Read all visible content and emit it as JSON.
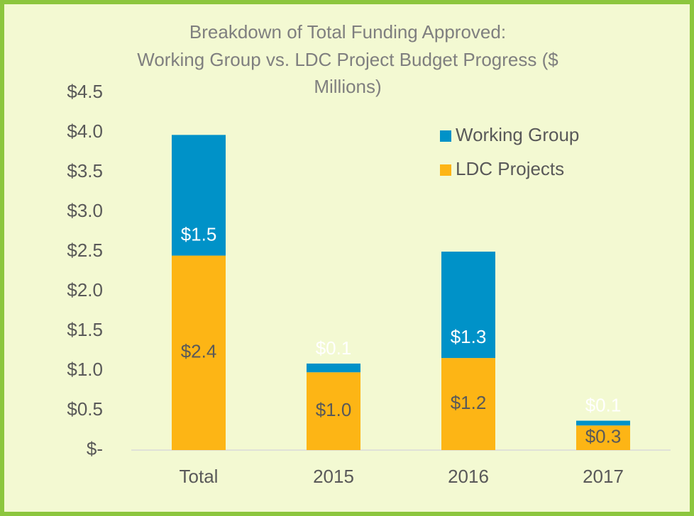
{
  "chart_data": {
    "type": "stacked-bar",
    "title": [
      "Breakdown of Total Funding Approved:",
      "Working Group vs. LDC Project Budget Progress ($",
      "Millions)"
    ],
    "categories": [
      "Total",
      "2015",
      "2016",
      "2017"
    ],
    "series": [
      {
        "name": "LDC Projects",
        "color": "#fdb515",
        "values": [
          2.45,
          0.98,
          1.16,
          0.31
        ],
        "value_labels": [
          "$2.4",
          "$1.0",
          "$1.2",
          "$0.3"
        ]
      },
      {
        "name": "Working Group",
        "color": "#0092c8",
        "values": [
          1.52,
          0.11,
          1.34,
          0.06
        ],
        "value_labels": [
          "$1.5",
          "$0.1",
          "$1.3",
          "$0.1"
        ]
      }
    ],
    "ylim": [
      0,
      4.5
    ],
    "yticks": [
      {
        "value": 0,
        "label": "$-"
      },
      {
        "value": 0.5,
        "label": "$0.5"
      },
      {
        "value": 1,
        "label": "$1.0"
      },
      {
        "value": 1.5,
        "label": "$1.5"
      },
      {
        "value": 2,
        "label": "$2.0"
      },
      {
        "value": 2.5,
        "label": "$2.5"
      },
      {
        "value": 3,
        "label": "$3.0"
      },
      {
        "value": 3.5,
        "label": "$3.5"
      },
      {
        "value": 4,
        "label": "$4.0"
      },
      {
        "value": 4.5,
        "label": "$4.5"
      }
    ],
    "legend_position": "upper right"
  }
}
